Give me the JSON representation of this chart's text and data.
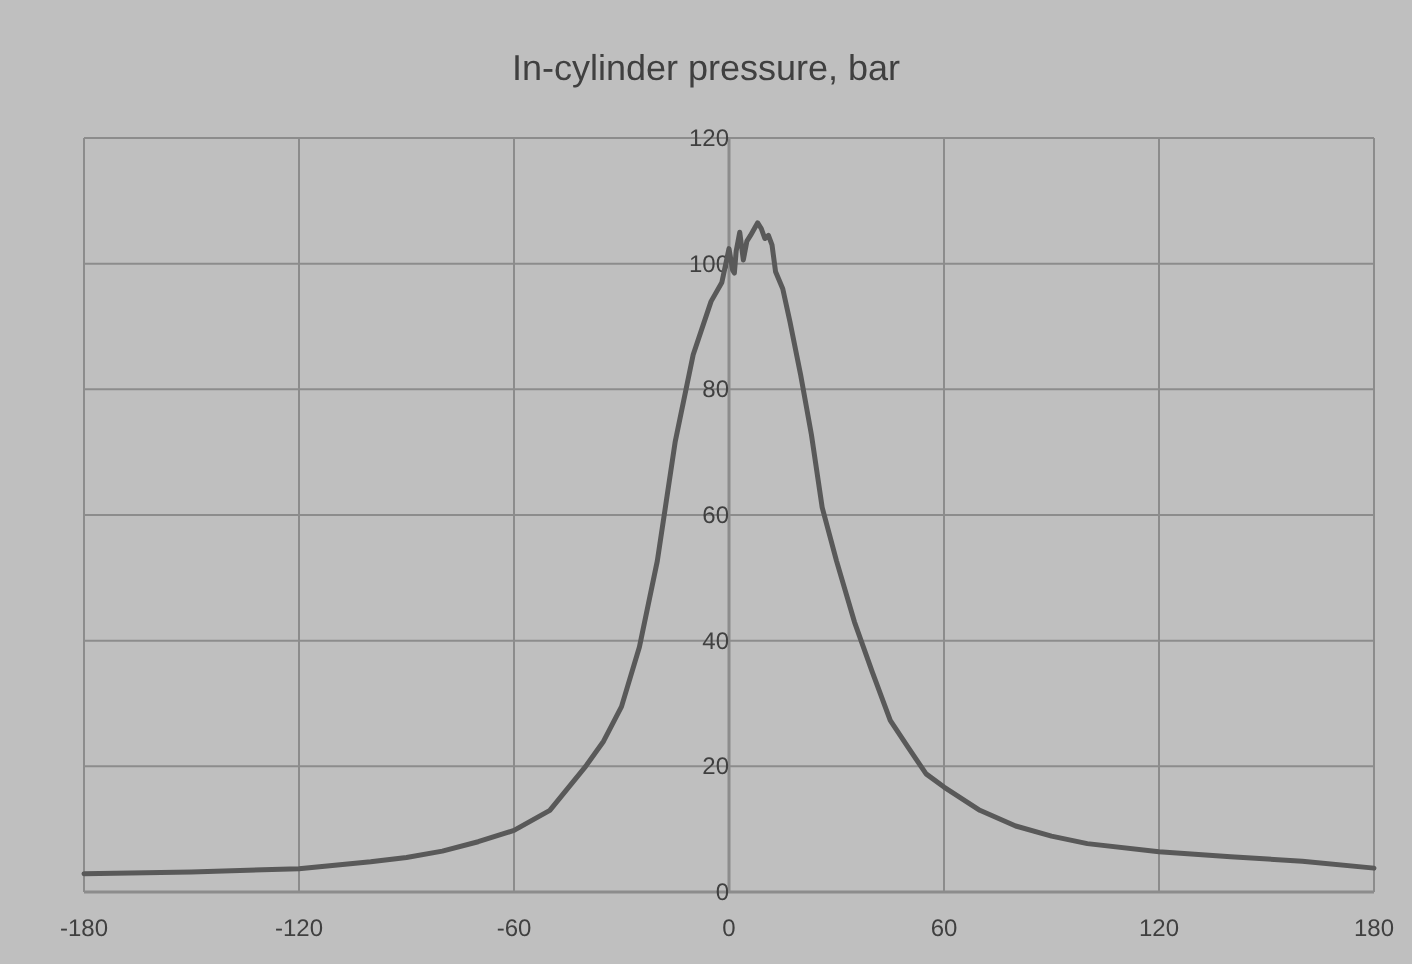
{
  "chart_data": {
    "type": "line",
    "title": "In-cylinder pressure, bar",
    "x": [
      -180,
      -150,
      -120,
      -100,
      -90,
      -80,
      -70,
      -60,
      -50,
      -40,
      -35,
      -30,
      -25,
      -20,
      -15,
      -10,
      -5,
      -2,
      0,
      1,
      1.5,
      2,
      3,
      4,
      5,
      6,
      8,
      9,
      10,
      11,
      12,
      13,
      15,
      17,
      20,
      23,
      26,
      30,
      35,
      40,
      45,
      50,
      55,
      60,
      70,
      80,
      90,
      100,
      120,
      140,
      160,
      180
    ],
    "series": [
      {
        "color": "#595959",
        "values": [
          2.9,
          3.2,
          3.7,
          4.8,
          5.5,
          6.5,
          8,
          9.8,
          13,
          20,
          24,
          29.5,
          39,
          52.7,
          71.7,
          85.5,
          94,
          97,
          102.4,
          99,
          98.5,
          102,
          105,
          100.6,
          103.6,
          104.5,
          106.5,
          105.6,
          104,
          104.5,
          103,
          98.7,
          96,
          90.8,
          82.3,
          72.8,
          61.2,
          52.7,
          43,
          35,
          27.3,
          23,
          18.8,
          16.7,
          13,
          10.5,
          8.9,
          7.7,
          6.4,
          5.6,
          4.9,
          3.8
        ]
      }
    ],
    "xlim": [
      -180,
      180
    ],
    "xticks": [
      -180,
      -120,
      -60,
      0,
      60,
      120,
      180
    ],
    "ylim": [
      0,
      120
    ],
    "yticks": [
      0,
      20,
      40,
      60,
      80,
      100,
      120
    ],
    "grid": true,
    "line_style": "solid",
    "marker": "none"
  }
}
